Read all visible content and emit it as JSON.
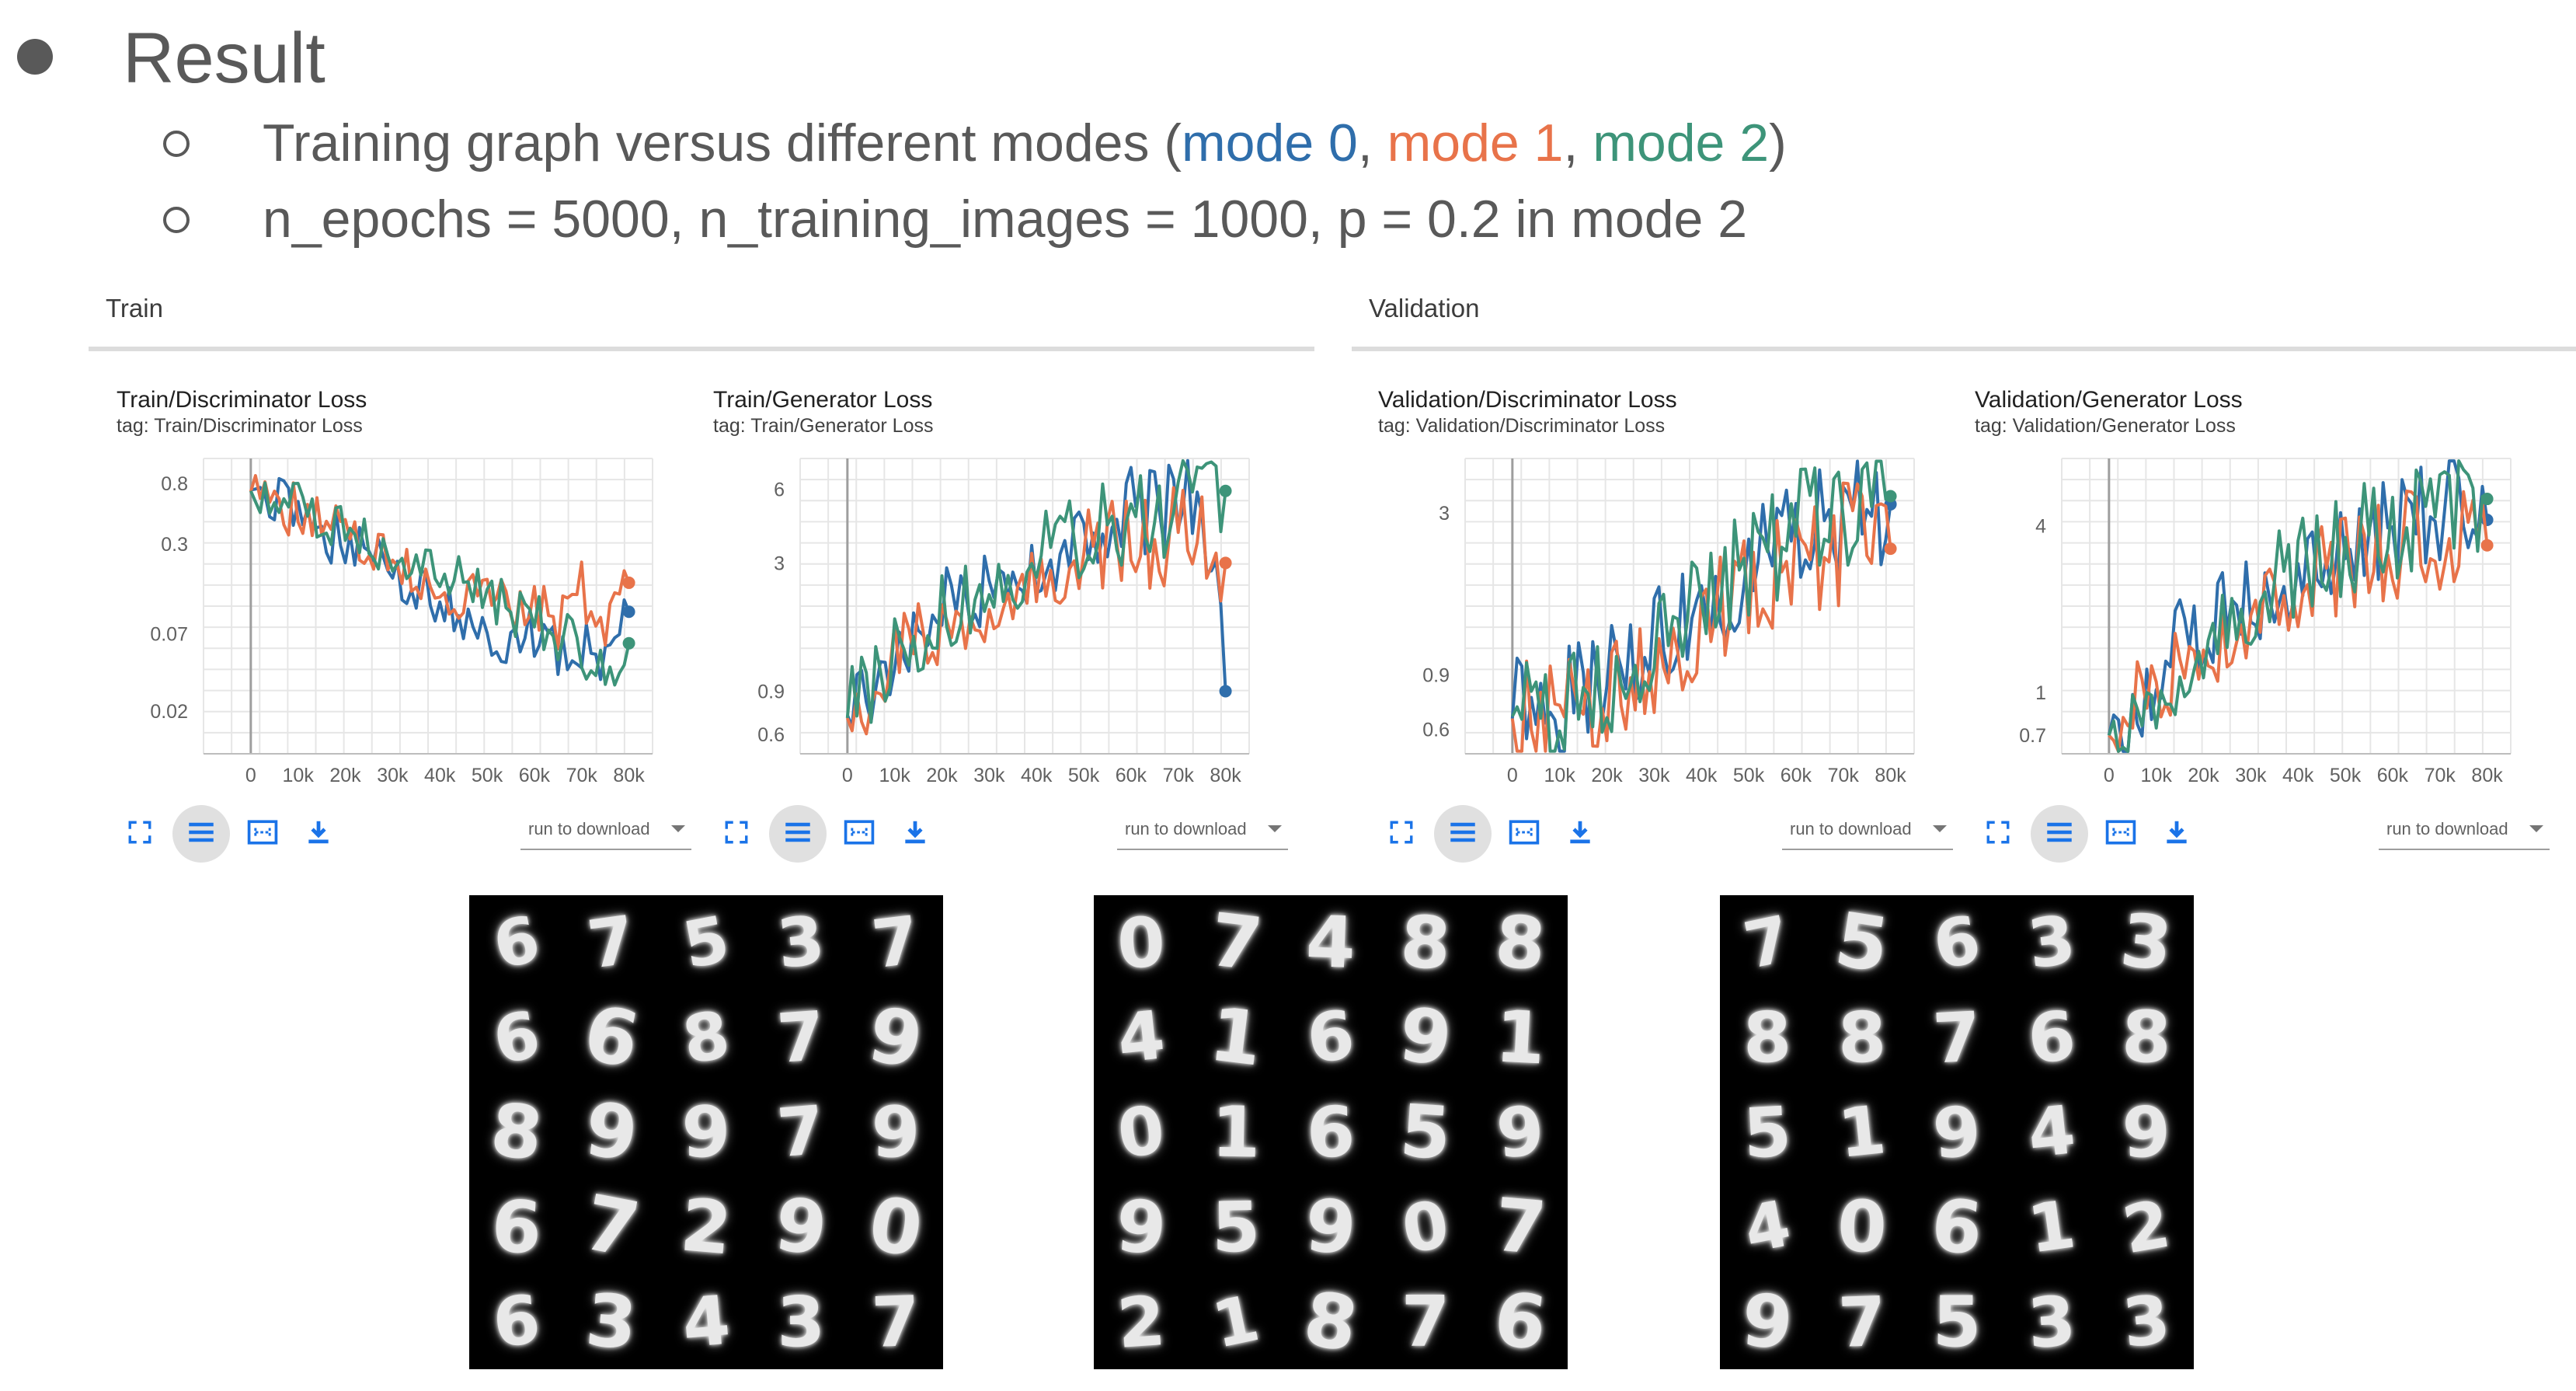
{
  "heading": {
    "title": "Result"
  },
  "bullets": {
    "line1": {
      "prefix": "Training graph versus different modes (",
      "mode0": "mode 0",
      "sep1": ", ",
      "mode1": "mode 1",
      "sep2": ", ",
      "mode2": "mode 2",
      "suffix": ")"
    },
    "line2": "n_epochs = 5000, n_training_images = 1000, p = 0.2 in mode 2"
  },
  "colors": {
    "mode0": "#2f6eab",
    "mode1": "#e8734a",
    "mode2": "#3d9479",
    "text": "#595959"
  },
  "sections": {
    "train": "Train",
    "validation": "Validation"
  },
  "toolbar": {
    "icons": [
      "fullscreen-icon",
      "list-icon",
      "fit-domain-icon",
      "download-icon"
    ],
    "download_label": "run to download"
  },
  "charts": [
    {
      "title": "Train/Discriminator Loss",
      "tag": "tag: Train/Discriminator Loss",
      "y_ticks": [
        "0.8",
        "0.3",
        "0.07",
        "0.02"
      ],
      "x_ticks": [
        "0",
        "10k",
        "20k",
        "30k",
        "40k",
        "50k",
        "60k",
        "70k",
        "80k"
      ]
    },
    {
      "title": "Train/Generator Loss",
      "tag": "tag: Train/Generator Loss",
      "y_ticks": [
        "6",
        "3",
        "0.9",
        "0.6"
      ],
      "x_ticks": [
        "0",
        "10k",
        "20k",
        "30k",
        "40k",
        "50k",
        "60k",
        "70k",
        "80k"
      ]
    },
    {
      "title": "Validation/Discriminator Loss",
      "tag": "tag: Validation/Discriminator Loss",
      "y_ticks": [
        "3",
        "0.9",
        "0.6"
      ],
      "x_ticks": [
        "0",
        "10k",
        "20k",
        "30k",
        "40k",
        "50k",
        "60k",
        "70k",
        "80k"
      ]
    },
    {
      "title": "Validation/Generator Loss",
      "tag": "tag: Validation/Generator Loss",
      "y_ticks": [
        "4",
        "1",
        "0.7"
      ],
      "x_ticks": [
        "0",
        "10k",
        "20k",
        "30k",
        "40k",
        "50k",
        "60k",
        "70k",
        "80k"
      ]
    }
  ],
  "chart_data": [
    {
      "type": "line",
      "title": "Train/Discriminator Loss",
      "y_scale": "log",
      "ylim": [
        0.01,
        1.2
      ],
      "x": [
        0,
        5000,
        10000,
        15000,
        20000,
        25000,
        30000,
        35000,
        40000,
        45000,
        50000,
        55000,
        60000,
        65000,
        70000,
        75000,
        80000
      ],
      "series": [
        {
          "name": "mode 0",
          "values": [
            0.72,
            0.6,
            0.45,
            0.38,
            0.3,
            0.25,
            0.18,
            0.15,
            0.12,
            0.1,
            0.08,
            0.06,
            0.07,
            0.05,
            0.06,
            0.04,
            0.1
          ]
        },
        {
          "name": "mode 1",
          "values": [
            0.7,
            0.62,
            0.5,
            0.42,
            0.35,
            0.3,
            0.22,
            0.2,
            0.16,
            0.13,
            0.18,
            0.1,
            0.12,
            0.08,
            0.15,
            0.06,
            0.16
          ]
        },
        {
          "name": "mode 2",
          "values": [
            0.71,
            0.63,
            0.52,
            0.45,
            0.38,
            0.33,
            0.28,
            0.25,
            0.2,
            0.18,
            0.14,
            0.1,
            0.09,
            0.07,
            0.05,
            0.04,
            0.06
          ]
        }
      ]
    },
    {
      "type": "line",
      "title": "Train/Generator Loss",
      "y_scale": "log",
      "ylim": [
        0.5,
        8
      ],
      "x": [
        0,
        5000,
        10000,
        15000,
        20000,
        25000,
        30000,
        35000,
        40000,
        45000,
        50000,
        55000,
        60000,
        65000,
        70000,
        75000,
        80000
      ],
      "series": [
        {
          "name": "mode 0",
          "values": [
            0.72,
            0.9,
            1.3,
            1.6,
            1.8,
            2.1,
            2.5,
            3.0,
            3.3,
            3.6,
            4.0,
            4.6,
            5.0,
            4.8,
            5.6,
            6.2,
            0.9
          ]
        },
        {
          "name": "mode 1",
          "values": [
            0.7,
            0.85,
            1.1,
            1.4,
            1.7,
            1.9,
            2.3,
            2.6,
            2.8,
            3.1,
            3.3,
            3.6,
            3.8,
            3.5,
            4.0,
            4.4,
            3.0
          ]
        },
        {
          "name": "mode 2",
          "values": [
            0.7,
            0.88,
            1.2,
            1.5,
            1.9,
            2.2,
            2.6,
            2.9,
            3.2,
            3.5,
            3.9,
            4.3,
            4.6,
            4.8,
            5.2,
            5.7,
            5.9
          ]
        }
      ]
    },
    {
      "type": "line",
      "title": "Validation/Discriminator Loss",
      "y_scale": "log",
      "ylim": [
        0.5,
        4.5
      ],
      "x": [
        0,
        5000,
        10000,
        15000,
        20000,
        25000,
        30000,
        35000,
        40000,
        45000,
        50000,
        55000,
        60000,
        65000,
        70000,
        75000,
        80000
      ],
      "series": [
        {
          "name": "mode 0",
          "values": [
            0.65,
            0.66,
            0.7,
            0.75,
            0.85,
            1.0,
            1.2,
            1.4,
            1.6,
            1.8,
            2.0,
            2.3,
            2.5,
            2.8,
            3.0,
            3.2,
            3.2
          ]
        },
        {
          "name": "mode 1",
          "values": [
            0.65,
            0.64,
            0.67,
            0.7,
            0.78,
            0.9,
            1.05,
            1.2,
            1.35,
            1.5,
            1.7,
            1.9,
            2.0,
            2.2,
            2.4,
            2.6,
            2.3
          ]
        },
        {
          "name": "mode 2",
          "values": [
            0.66,
            0.67,
            0.72,
            0.78,
            0.88,
            1.05,
            1.25,
            1.45,
            1.65,
            1.85,
            2.05,
            2.3,
            2.6,
            2.9,
            3.1,
            3.3,
            3.4
          ]
        }
      ]
    },
    {
      "type": "line",
      "title": "Validation/Generator Loss",
      "y_scale": "log",
      "ylim": [
        0.6,
        7
      ],
      "x": [
        0,
        5000,
        10000,
        15000,
        20000,
        25000,
        30000,
        35000,
        40000,
        45000,
        50000,
        55000,
        60000,
        65000,
        70000,
        75000,
        80000
      ],
      "series": [
        {
          "name": "mode 0",
          "values": [
            0.7,
            0.85,
            1.1,
            1.4,
            1.7,
            2.0,
            2.3,
            2.6,
            2.9,
            3.2,
            3.4,
            3.7,
            4.0,
            4.3,
            4.6,
            4.9,
            4.2
          ]
        },
        {
          "name": "mode 1",
          "values": [
            0.7,
            0.8,
            1.0,
            1.3,
            1.55,
            1.8,
            2.1,
            2.3,
            2.5,
            2.7,
            2.9,
            3.1,
            3.3,
            3.5,
            3.7,
            4.0,
            3.4
          ]
        },
        {
          "name": "mode 2",
          "values": [
            0.7,
            0.82,
            1.05,
            1.35,
            1.65,
            1.95,
            2.25,
            2.55,
            2.85,
            3.1,
            3.4,
            3.7,
            4.0,
            4.3,
            4.6,
            5.0,
            5.0
          ]
        }
      ]
    }
  ],
  "digit_grids": [
    {
      "name": "mode-0-samples",
      "digits": [
        "6",
        "7",
        "5",
        "3",
        "7",
        "6",
        "6",
        "8",
        "7",
        "9",
        "8",
        "9",
        "9",
        "7",
        "9",
        "6",
        "7",
        "2",
        "9",
        "0",
        "6",
        "3",
        "4",
        "3",
        "7"
      ]
    },
    {
      "name": "mode-1-samples",
      "digits": [
        "0",
        "7",
        "4",
        "8",
        "8",
        "4",
        "1",
        "6",
        "9",
        "1",
        "0",
        "1",
        "6",
        "5",
        "9",
        "9",
        "5",
        "9",
        "0",
        "7",
        "2",
        "1",
        "8",
        "7",
        "6"
      ]
    },
    {
      "name": "mode-2-samples",
      "digits": [
        "7",
        "5",
        "6",
        "3",
        "3",
        "8",
        "8",
        "7",
        "6",
        "8",
        "5",
        "1",
        "9",
        "4",
        "9",
        "4",
        "0",
        "6",
        "1",
        "2",
        "9",
        "7",
        "5",
        "3",
        "3"
      ]
    }
  ]
}
